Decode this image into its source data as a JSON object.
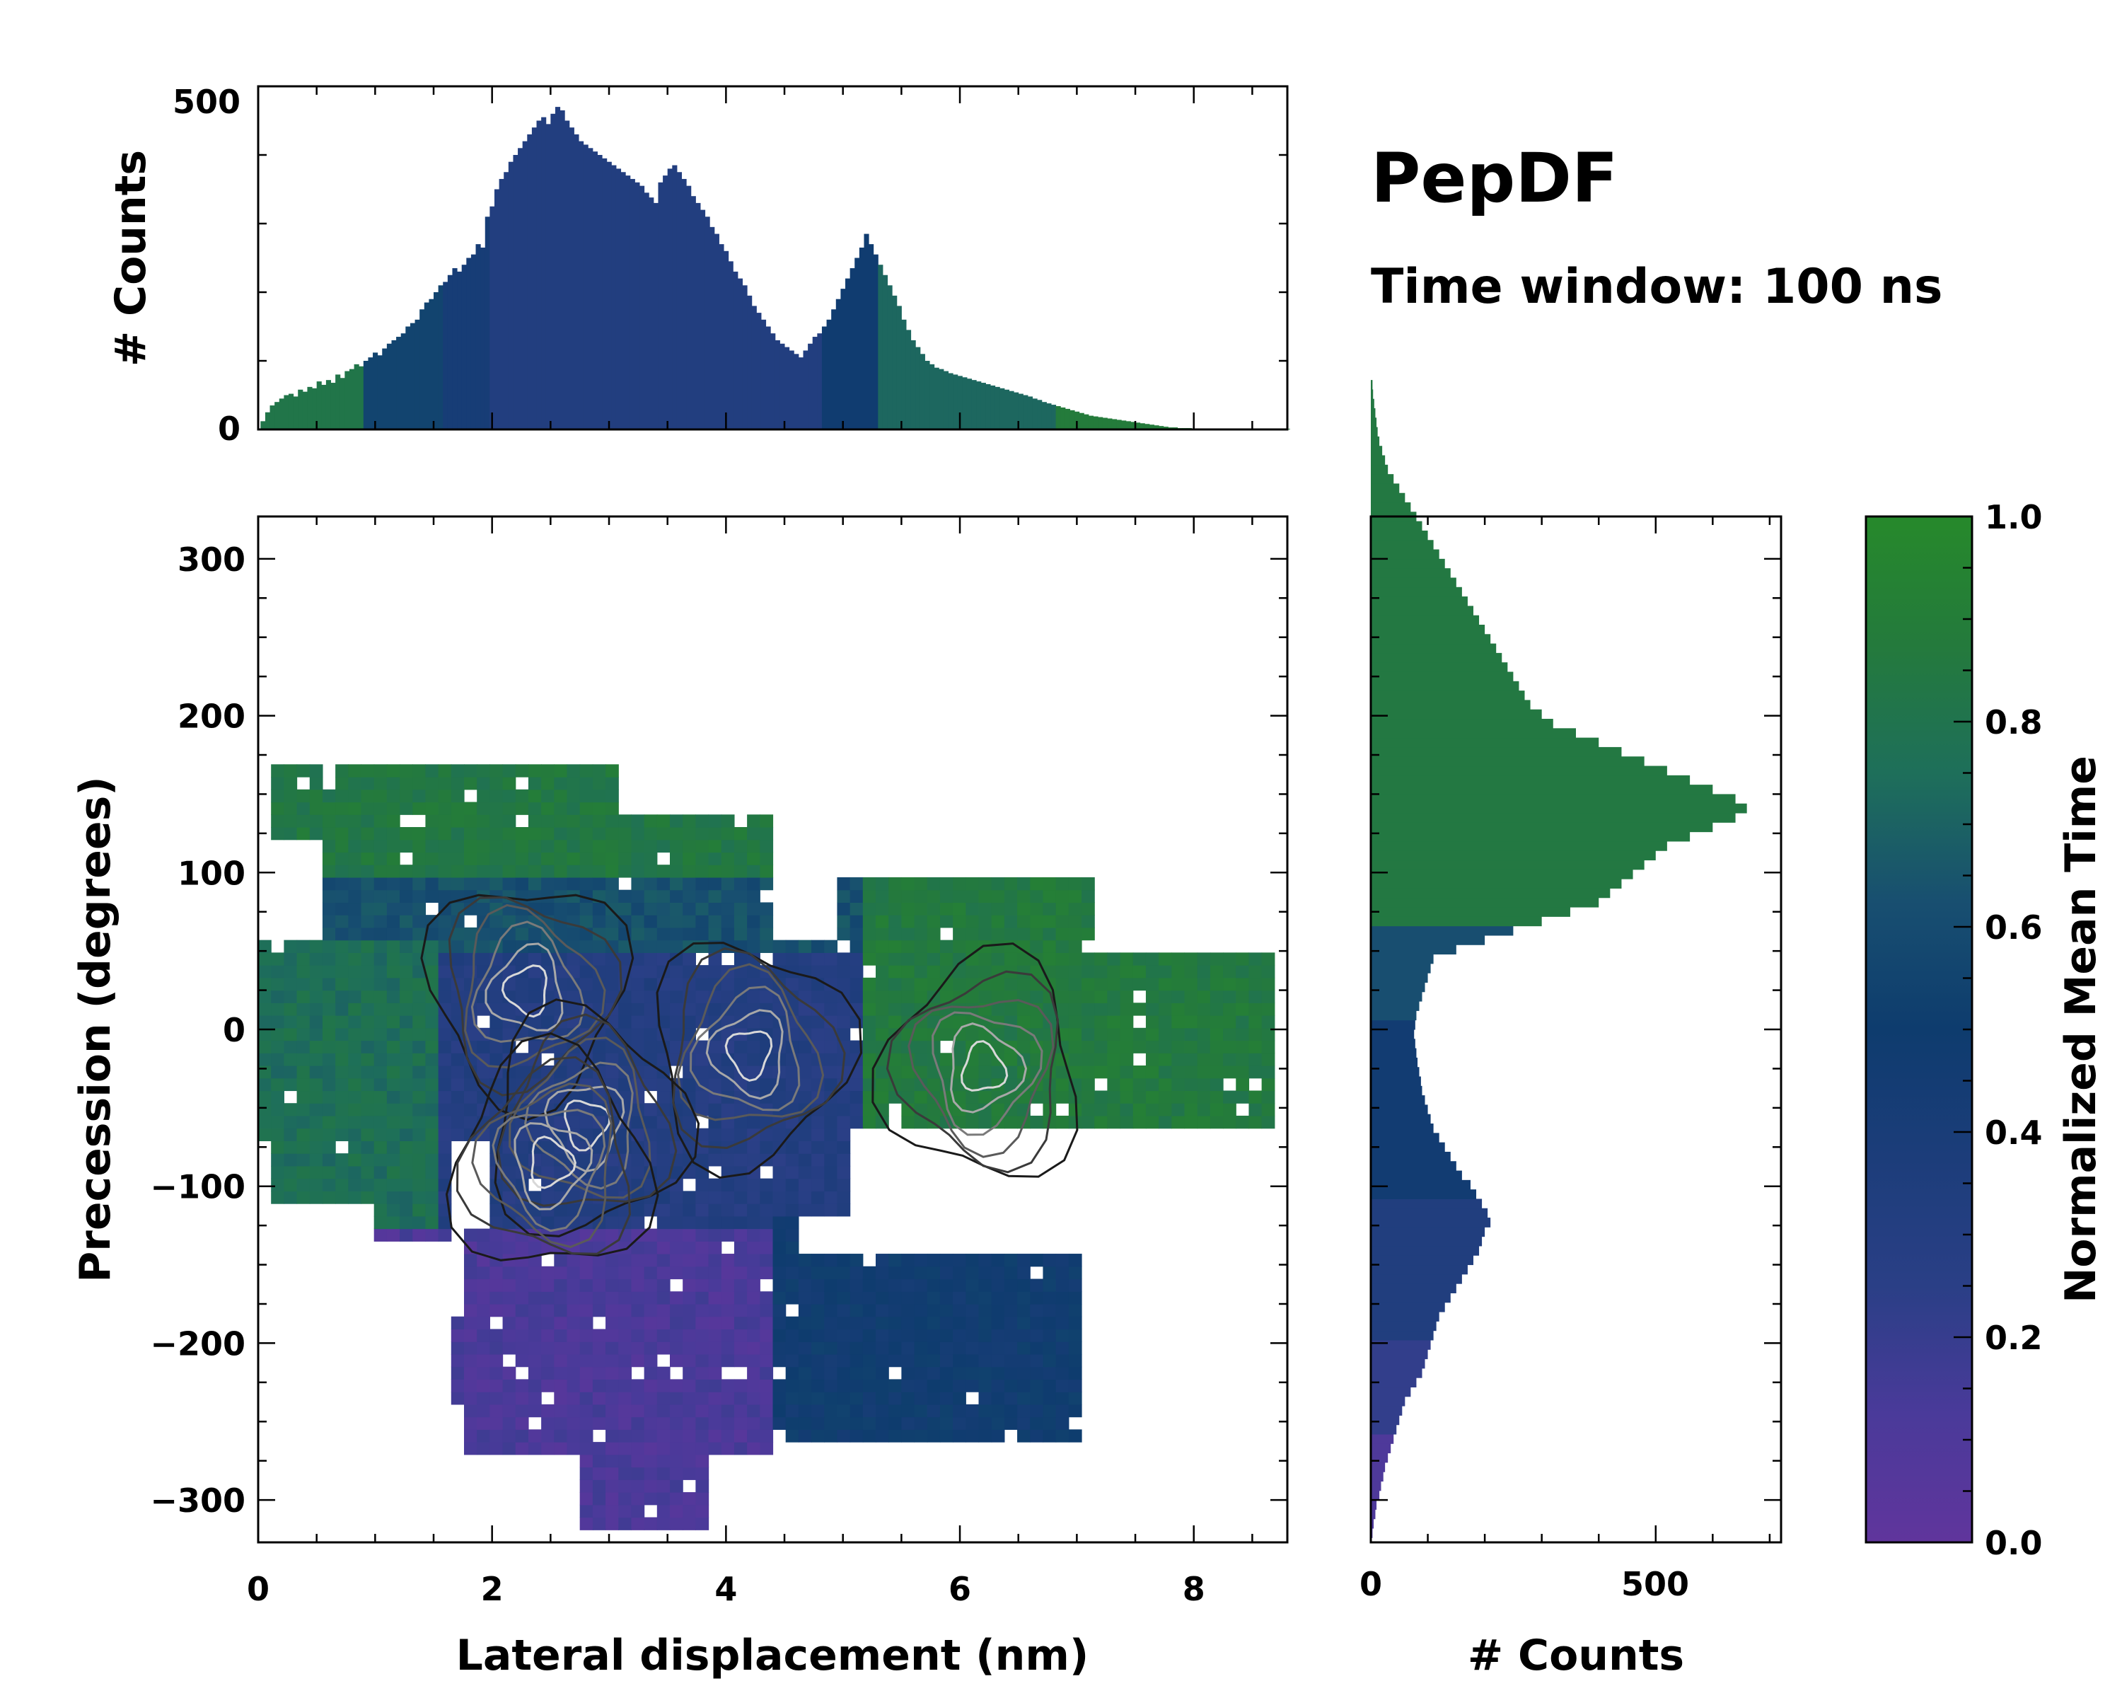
{
  "figure": {
    "title": "PepDF",
    "subtitle": "Time window: 100 ns"
  },
  "colors": {
    "cmap": [
      "#60359c",
      "#4a3a9a",
      "#2a3f86",
      "#1c3d7a",
      "#0e3c6e",
      "#184f70",
      "#1e6f5a",
      "#247a3c",
      "#26892b"
    ],
    "frame": "#000000"
  },
  "chart_data": [
    {
      "name": "top-histogram",
      "type": "bar",
      "ylabel": "# Counts",
      "xlim": [
        0,
        8.8
      ],
      "ylim": [
        0,
        500
      ],
      "yticks": [
        "0",
        "500"
      ],
      "bin_width": 0.04,
      "x_start": 0.02,
      "values": [
        12,
        25,
        35,
        40,
        45,
        50,
        52,
        48,
        58,
        55,
        62,
        60,
        70,
        65,
        72,
        68,
        80,
        75,
        85,
        88,
        95,
        92,
        100,
        105,
        112,
        108,
        118,
        125,
        130,
        135,
        140,
        150,
        155,
        160,
        175,
        185,
        190,
        200,
        210,
        215,
        225,
        235,
        230,
        240,
        250,
        255,
        270,
        265,
        310,
        325,
        350,
        365,
        375,
        390,
        400,
        410,
        420,
        430,
        440,
        450,
        455,
        445,
        460,
        470,
        465,
        450,
        440,
        430,
        420,
        415,
        410,
        405,
        400,
        395,
        390,
        385,
        380,
        375,
        370,
        365,
        360,
        355,
        345,
        338,
        330,
        360,
        370,
        380,
        385,
        375,
        365,
        355,
        340,
        330,
        320,
        310,
        295,
        285,
        270,
        260,
        245,
        230,
        220,
        210,
        195,
        180,
        170,
        160,
        150,
        140,
        130,
        125,
        120,
        115,
        110,
        105,
        115,
        125,
        135,
        140,
        150,
        160,
        175,
        190,
        205,
        220,
        235,
        250,
        265,
        285,
        270,
        255,
        240,
        225,
        210,
        195,
        180,
        160,
        145,
        130,
        120,
        110,
        100,
        95,
        90,
        88,
        85,
        82,
        80,
        78,
        76,
        74,
        72,
        70,
        68,
        66,
        64,
        62,
        60,
        58,
        56,
        54,
        52,
        50,
        48,
        45,
        43,
        40,
        38,
        36,
        34,
        32,
        30,
        28,
        26,
        24,
        22,
        20,
        19,
        18,
        17,
        16,
        15,
        14,
        13,
        12,
        11,
        10,
        9,
        8,
        7,
        6,
        5,
        4,
        3,
        3,
        2,
        2,
        2,
        1,
        1,
        1,
        1,
        1,
        1,
        1,
        1,
        1,
        1,
        1,
        1,
        1,
        1,
        1,
        1,
        1,
        1,
        1,
        1,
        1
      ]
    },
    {
      "name": "joint-density",
      "type": "heatmap",
      "xlabel": "Lateral displacement (nm)",
      "ylabel": "Precession (degrees)",
      "xlim": [
        0,
        8.8
      ],
      "ylim": [
        -327,
        327
      ],
      "xticks": [
        "0",
        "2",
        "4",
        "6",
        "8"
      ],
      "yticks": [
        "300",
        "200",
        "100",
        "0",
        "−100",
        "−200",
        "−300"
      ],
      "regions": [
        {
          "label": "upper-green",
          "x": [
            0.1,
            3.2
          ],
          "y": [
            110,
            175
          ],
          "time": 0.88
        },
        {
          "label": "central-blue",
          "x": [
            2.0,
            5.0
          ],
          "y": [
            -110,
            30
          ],
          "time": 0.32
        },
        {
          "label": "right-green",
          "x": [
            5.0,
            8.7
          ],
          "y": [
            -90,
            100
          ],
          "time": 0.85
        },
        {
          "label": "lower-purple",
          "x": [
            1.6,
            4.2
          ],
          "y": [
            -320,
            -130
          ],
          "time": 0.1
        },
        {
          "label": "lower-right-blue",
          "x": [
            4.2,
            7.0
          ],
          "y": [
            -270,
            -140
          ],
          "time": 0.48
        },
        {
          "label": "left-green",
          "x": [
            0.0,
            1.6
          ],
          "y": [
            -130,
            30
          ],
          "time": 0.78
        }
      ],
      "peaks": [
        {
          "x": 2.3,
          "y": 25
        },
        {
          "x": 4.2,
          "y": -15
        },
        {
          "x": 2.8,
          "y": -60
        },
        {
          "x": 2.5,
          "y": -85
        },
        {
          "x": 6.2,
          "y": -25
        }
      ]
    },
    {
      "name": "right-histogram",
      "type": "bar",
      "orientation": "horizontal",
      "xlabel": "# Counts",
      "xlim": [
        0,
        720
      ],
      "xticks": [
        "0",
        "500"
      ],
      "ylim": [
        -327,
        327
      ],
      "bin_width": 6,
      "y_start": -324,
      "values": [
        3,
        5,
        8,
        10,
        15,
        18,
        22,
        25,
        30,
        35,
        40,
        45,
        50,
        55,
        60,
        70,
        80,
        90,
        95,
        100,
        105,
        110,
        115,
        120,
        130,
        140,
        150,
        160,
        170,
        180,
        190,
        195,
        200,
        210,
        205,
        195,
        185,
        175,
        160,
        150,
        140,
        130,
        120,
        110,
        105,
        100,
        95,
        90,
        88,
        85,
        82,
        80,
        78,
        76,
        78,
        80,
        85,
        90,
        95,
        100,
        105,
        110,
        150,
        200,
        250,
        300,
        350,
        400,
        420,
        440,
        460,
        480,
        500,
        520,
        560,
        600,
        640,
        660,
        640,
        600,
        560,
        520,
        480,
        440,
        400,
        360,
        320,
        300,
        280,
        270,
        260,
        250,
        240,
        230,
        220,
        210,
        200,
        190,
        180,
        170,
        160,
        150,
        140,
        130,
        120,
        110,
        100,
        90,
        80,
        70,
        60,
        50,
        40,
        30,
        25,
        20,
        15,
        12,
        10,
        8,
        6,
        4,
        3
      ]
    },
    {
      "name": "colorbar",
      "type": "colorbar",
      "label": "Normalized Mean Time",
      "range": [
        0,
        1
      ],
      "ticks": [
        "0.0",
        "0.2",
        "0.4",
        "0.6",
        "0.8",
        "1.0"
      ]
    }
  ]
}
